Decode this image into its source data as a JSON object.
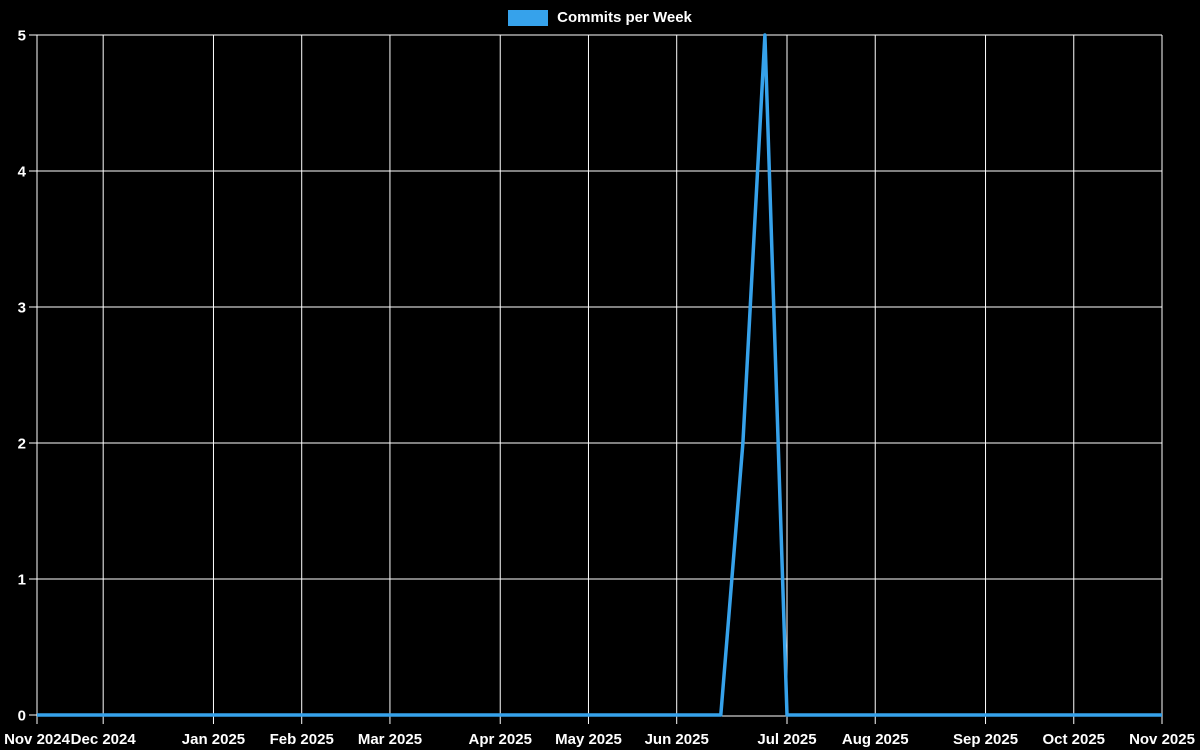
{
  "legend": {
    "label": "Commits per Week"
  },
  "colors": {
    "background": "#000000",
    "grid": "#ffffff",
    "axis_text": "#ffffff",
    "series_line": "#36a2eb"
  },
  "y_axis": {
    "tick_labels": [
      "0",
      "1",
      "2",
      "3",
      "4",
      "5"
    ]
  },
  "x_axis": {
    "tick_labels": [
      "Nov 2024",
      "Dec 2024",
      "Jan 2025",
      "Feb 2025",
      "Mar 2025",
      "Apr 2025",
      "May 2025",
      "Jun 2025",
      "Jul 2025",
      "Aug 2025",
      "Sep 2025",
      "Oct 2025",
      "Nov 2025"
    ],
    "tick_week_indices": [
      0,
      3,
      8,
      12,
      16,
      21,
      25,
      29,
      34,
      38,
      43,
      47,
      51
    ]
  },
  "chart_data": {
    "type": "line",
    "title": "",
    "legend_entries": [
      "Commits per Week"
    ],
    "legend_position": "top-center",
    "grid": "on",
    "xlabel": "",
    "ylabel": "",
    "ylim": [
      0,
      5
    ],
    "y_ticks": [
      0,
      1,
      2,
      3,
      4,
      5
    ],
    "x_tick_labels": [
      "Nov 2024",
      "Dec 2024",
      "Jan 2025",
      "Feb 2025",
      "Mar 2025",
      "Apr 2025",
      "May 2025",
      "Jun 2025",
      "Jul 2025",
      "Aug 2025",
      "Sep 2025",
      "Oct 2025",
      "Nov 2025"
    ],
    "series": [
      {
        "name": "Commits per Week",
        "color": "#36a2eb",
        "x_weeks": [
          "2024-11-10",
          "2024-11-17",
          "2024-11-24",
          "2024-12-01",
          "2024-12-08",
          "2024-12-15",
          "2024-12-22",
          "2024-12-29",
          "2025-01-05",
          "2025-01-12",
          "2025-01-19",
          "2025-01-26",
          "2025-02-02",
          "2025-02-09",
          "2025-02-16",
          "2025-02-23",
          "2025-03-02",
          "2025-03-09",
          "2025-03-16",
          "2025-03-23",
          "2025-03-30",
          "2025-04-06",
          "2025-04-13",
          "2025-04-20",
          "2025-04-27",
          "2025-05-04",
          "2025-05-11",
          "2025-05-18",
          "2025-05-25",
          "2025-06-01",
          "2025-06-08",
          "2025-06-15",
          "2025-06-22",
          "2025-06-29",
          "2025-07-06",
          "2025-07-13",
          "2025-07-20",
          "2025-07-27",
          "2025-08-03",
          "2025-08-10",
          "2025-08-17",
          "2025-08-24",
          "2025-08-31",
          "2025-09-07",
          "2025-09-14",
          "2025-09-21",
          "2025-09-28",
          "2025-10-05",
          "2025-10-12",
          "2025-10-19",
          "2025-10-26",
          "2025-11-02"
        ],
        "values": [
          0,
          0,
          0,
          0,
          0,
          0,
          0,
          0,
          0,
          0,
          0,
          0,
          0,
          0,
          0,
          0,
          0,
          0,
          0,
          0,
          0,
          0,
          0,
          0,
          0,
          0,
          0,
          0,
          0,
          0,
          0,
          0,
          2,
          5,
          0,
          0,
          0,
          0,
          0,
          0,
          0,
          0,
          0,
          0,
          0,
          0,
          0,
          0,
          0,
          0,
          0,
          0
        ]
      }
    ]
  }
}
